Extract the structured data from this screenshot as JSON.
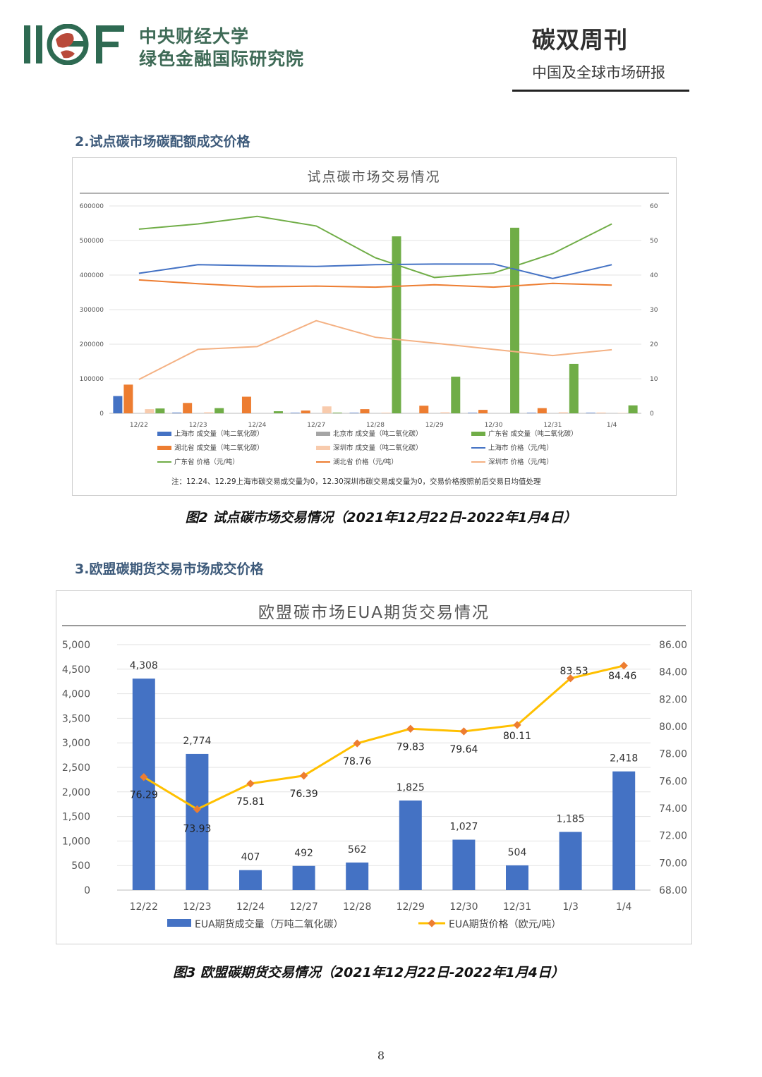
{
  "header": {
    "logo_text": "IIGF",
    "org_line1": "中央财经大学",
    "org_line2": "绿色金融国际研究院",
    "weekly_title": "碳双周刊",
    "weekly_subtitle": "中国及全球市场研报",
    "colors": {
      "logo_green": "#2e6a52",
      "logo_red": "#b94a3a"
    }
  },
  "section2": {
    "title": "2.试点碳市场碳配额成交价格",
    "caption": "图2 试点碳市场交易情况（2021年12月22日-2022年1月4日）"
  },
  "section3": {
    "title": "3.欧盟碳期货交易市场成交价格",
    "caption": "图3 欧盟碳期货交易情况（2021年12月22日-2022年1月4日）"
  },
  "page_number": "8",
  "chart_data": [
    {
      "type": "bar",
      "title": "试点碳市场交易情况",
      "categories": [
        "12/22",
        "12/23",
        "12/24",
        "12/27",
        "12/28",
        "12/29",
        "12/30",
        "12/31",
        "1/4"
      ],
      "ylim": [
        0,
        600000
      ],
      "y2lim": [
        0,
        60
      ],
      "yticks": [
        "0",
        "100000",
        "200000",
        "300000",
        "400000",
        "500000",
        "600000"
      ],
      "y2ticks": [
        "0",
        "10",
        "20",
        "30",
        "40",
        "50",
        "60"
      ],
      "bar_series": [
        {
          "name": "上海市 成交量（吨二氧化碳）",
          "color": "#4472c4",
          "values": [
            50000,
            2000,
            0,
            1500,
            1500,
            0,
            1500,
            1500,
            1500
          ]
        },
        {
          "name": "湖北省 成交量（吨二氧化碳）",
          "color": "#ed7d31",
          "values": [
            83000,
            30000,
            48000,
            8000,
            12000,
            22000,
            10000,
            15000,
            1000
          ]
        },
        {
          "name": "北京市 成交量（吨二氧化碳）",
          "color": "#a5a5a5",
          "values": [
            0,
            0,
            0,
            0,
            0,
            0,
            0,
            0,
            0
          ]
        },
        {
          "name": "深圳市 成交量（吨二氧化碳）",
          "color": "#f8cbad",
          "values": [
            12000,
            3000,
            0,
            20000,
            2000,
            3000,
            0,
            3000,
            1000
          ]
        },
        {
          "name": "广东省 成交量（吨二氧化碳）",
          "color": "#70ad47",
          "values": [
            14000,
            15000,
            6000,
            2000,
            512000,
            106000,
            537000,
            143000,
            23000
          ]
        }
      ],
      "line_series": [
        {
          "name": "上海市 价格（元/吨）",
          "color": "#4472c4",
          "values": [
            40.5,
            43.0,
            42.7,
            42.5,
            43.0,
            43.2,
            43.2,
            39.0,
            43.0
          ]
        },
        {
          "name": "广东省 价格（元/吨）",
          "color": "#70ad47",
          "values": [
            53.3,
            54.8,
            57.0,
            54.2,
            45.0,
            39.3,
            40.6,
            46.2,
            54.8
          ]
        },
        {
          "name": "湖北省 价格（元/吨）",
          "color": "#ed7d31",
          "values": [
            38.6,
            37.5,
            36.6,
            36.8,
            36.5,
            37.2,
            36.5,
            37.6,
            37.1
          ]
        },
        {
          "name": "深圳市 价格（元/吨）",
          "color": "#f4b183",
          "values": [
            9.8,
            18.5,
            19.3,
            26.8,
            22.0,
            20.3,
            18.5,
            16.7,
            18.4
          ]
        }
      ],
      "legend": [
        "上海市 成交量（吨二氧化碳）",
        "北京市 成交量（吨二氧化碳）",
        "广东省 成交量（吨二氧化碳）",
        "湖北省 成交量（吨二氧化碳）",
        "深圳市 成交量（吨二氧化碳）",
        "上海市 价格（元/吨）",
        "广东省 价格（元/吨）",
        "湖北省 价格（元/吨）",
        "深圳市 价格（元/吨）"
      ],
      "legend_placement": "bottom",
      "note": "注：12.24、12.29上海市碳交易成交量为0，12.30深圳市碳交易成交量为0，交易价格按照前后交易日均值处理"
    },
    {
      "type": "bar",
      "title": "欧盟碳市场EUA期货交易情况",
      "categories": [
        "12/22",
        "12/23",
        "12/24",
        "12/27",
        "12/28",
        "12/29",
        "12/30",
        "12/31",
        "1/3",
        "1/4"
      ],
      "ylim": [
        0,
        5000
      ],
      "y2lim": [
        68,
        86
      ],
      "yticks": [
        "0",
        "500",
        "1,000",
        "1,500",
        "2,000",
        "2,500",
        "3,000",
        "3,500",
        "4,000",
        "4,500",
        "5,000"
      ],
      "y2ticks": [
        "68.00",
        "70.00",
        "72.00",
        "74.00",
        "76.00",
        "78.00",
        "80.00",
        "82.00",
        "84.00",
        "86.00"
      ],
      "series": [
        {
          "name": "EUA期货成交量（万吨二氧化碳）",
          "color": "#4472c4",
          "values": [
            4308,
            2774,
            407,
            492,
            562,
            1825,
            1027,
            504,
            1185,
            2418
          ],
          "labels": [
            "4,308",
            "2,774",
            "407",
            "492",
            "562",
            "1,825",
            "1,027",
            "504",
            "1,185",
            "2,418"
          ]
        },
        {
          "name": "EUA期货价格（欧元/吨）",
          "color": "#ffc000",
          "marker_color": "#ed7d31",
          "values": [
            76.29,
            73.93,
            75.81,
            76.39,
            78.76,
            79.83,
            79.64,
            80.11,
            83.53,
            84.46
          ],
          "labels": [
            "76.29",
            "73.93",
            "75.81",
            "76.39",
            "78.76",
            "79.83",
            "79.64",
            "80.11",
            "83.53",
            "84.46"
          ]
        }
      ],
      "legend_placement": "bottom"
    }
  ]
}
